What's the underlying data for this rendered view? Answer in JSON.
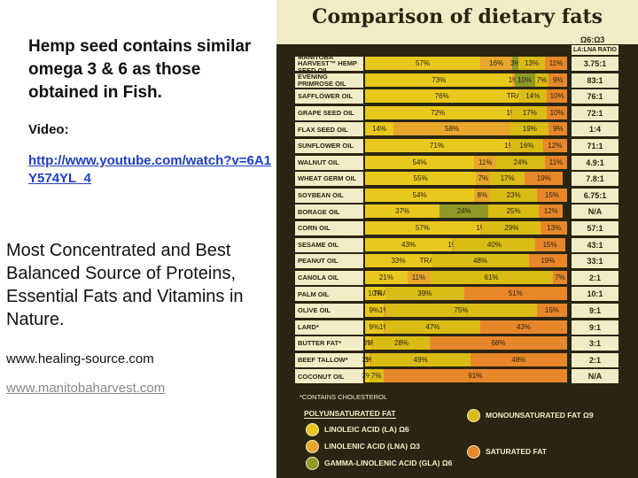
{
  "slide": {
    "heading": "Hemp seed contains similar omega 3 & 6 as those obtained in Fish.",
    "video_label": "Video:",
    "video_link": "http://www.youtube.com/watch?v=6A1Y574YL_4",
    "tagline": "Most Concentrated and Best Balanced Source of Proteins, Essential Fats and Vitamins in Nature.",
    "site_1": "www.healing-source.com",
    "site_2": "www.manitobaharvest.com"
  },
  "chart_data": {
    "type": "bar",
    "orientation": "horizontal",
    "stacked": true,
    "title": "Comparison of dietary fats",
    "xlim": [
      0,
      100
    ],
    "ratio_header": "Ω6:Ω3",
    "ratio_subheader": "LA:LNA RATIO",
    "categories": [
      "MANITOBA HARVEST™ HEMP SEED OIL",
      "EVENING PRIMROSE OIL",
      "SAFFLOWER OIL",
      "GRAPE SEED OIL",
      "FLAX SEED OIL",
      "SUNFLOWER OIL",
      "WALNUT OIL",
      "WHEAT GERM OIL",
      "SOYBEAN OIL",
      "BORAGE OIL",
      "CORN OIL",
      "SESAME OIL",
      "PEANUT OIL",
      "CANOLA OIL",
      "PALM OIL",
      "OLIVE OIL",
      "LARD*",
      "BUTTER FAT*",
      "BEEF TALLOW*",
      "COCONUT OIL"
    ],
    "ratios": [
      "3.75:1",
      "83:1",
      "76:1",
      "72:1",
      "1:4",
      "71:1",
      "4.9:1",
      "7.8:1",
      "6.75:1",
      "N/A",
      "57:1",
      "43:1",
      "33:1",
      "2:1",
      "10:1",
      "9:1",
      "9:1",
      "3:1",
      "2:1",
      "N/A"
    ],
    "legend_group": "POLYUNSATURATED FAT",
    "footnote": "*CONTAINS CHOLESTEROL",
    "series": [
      {
        "name": "LINOLEIC ACID (LA) Ω6",
        "color": "#e9c81e",
        "values": [
          57,
          73,
          76,
          72,
          14,
          71,
          54,
          55,
          54,
          37,
          57,
          43,
          33,
          21,
          10,
          9,
          9,
          3,
          2,
          2
        ],
        "value_labels": [
          "57%",
          "73%",
          "76%",
          "72%",
          "14%",
          "71%",
          "54%",
          "55%",
          "54%",
          "37%",
          "57%",
          "43%",
          "33%",
          "21%",
          "10%",
          "9%",
          "9%",
          "3%",
          "2%",
          "2%"
        ]
      },
      {
        "name": "LINOLENIC ACID (LNA) Ω3",
        "color": "#e8a62c",
        "values": [
          16,
          1,
          0,
          1,
          58,
          1,
          11,
          7,
          8,
          null,
          1,
          1,
          0,
          11,
          0,
          1,
          1,
          1,
          1,
          null
        ],
        "value_labels": [
          "16%",
          "1%",
          "TRACE",
          "1%",
          "58%",
          "1%",
          "11%",
          "7%",
          "8%",
          null,
          "1%",
          "1%",
          "TRACE",
          "11%",
          "TRACE",
          "1%",
          "1%",
          "1%",
          "1%",
          null
        ]
      },
      {
        "name": "GAMMA-LINOLENIC ACID (GLA) Ω6",
        "color": "#8f9a26",
        "values": [
          3,
          10,
          null,
          null,
          null,
          null,
          null,
          null,
          null,
          24,
          null,
          null,
          null,
          null,
          null,
          null,
          null,
          null,
          null,
          null
        ],
        "value_labels": [
          "3%",
          "10%",
          null,
          null,
          null,
          null,
          null,
          null,
          null,
          "24%",
          null,
          null,
          null,
          null,
          null,
          null,
          null,
          null,
          null,
          null
        ]
      },
      {
        "name": "MONOUNSATURATED FAT Ω9",
        "color": "#d9bc14",
        "values": [
          13,
          7,
          14,
          17,
          19,
          16,
          24,
          17,
          23,
          25,
          29,
          40,
          48,
          61,
          39,
          75,
          47,
          28,
          49,
          7
        ],
        "value_labels": [
          "13%",
          "7%",
          "14%",
          "17%",
          "19%",
          "16%",
          "24%",
          "17%",
          "23%",
          "25%",
          "29%",
          "40%",
          "48%",
          "61%",
          "39%",
          "75%",
          "47%",
          "28%",
          "49%",
          "7%"
        ]
      },
      {
        "name": "SATURATED FAT",
        "color": "#e7872a",
        "values": [
          11,
          9,
          10,
          10,
          9,
          12,
          11,
          19,
          15,
          12,
          13,
          15,
          19,
          7,
          51,
          15,
          43,
          68,
          48,
          91
        ],
        "value_labels": [
          "11%",
          "9%",
          "10%",
          "10%",
          "9%",
          "12%",
          "11%",
          "19%",
          "15%",
          "12%",
          "13%",
          "15%",
          "19%",
          "7%",
          "51%",
          "15%",
          "43%",
          "68%",
          "48%",
          "91%"
        ]
      }
    ]
  }
}
